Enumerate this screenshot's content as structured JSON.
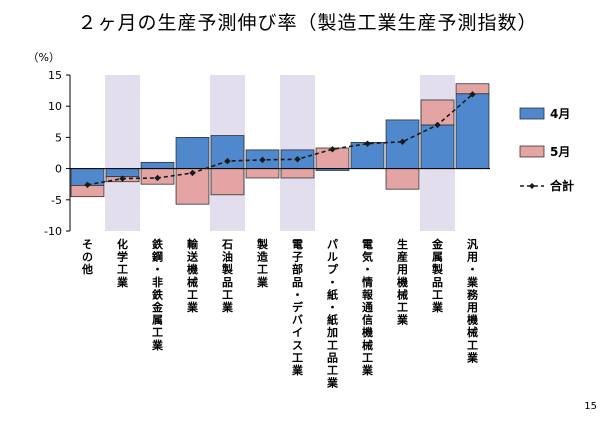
{
  "title": "２ヶ月の生産予測伸び率（製造工業生産予測指数）",
  "page_number": "15",
  "colors": {
    "april": "#4f88cc",
    "may": "#e4a4a4",
    "shade": "#e2deed",
    "line": "#1a1a1a"
  },
  "chart_data": {
    "type": "bar",
    "ylabel": "（%）",
    "ylim": [
      -10,
      15
    ],
    "yticks": [
      "15",
      "10",
      "5",
      "0",
      "-5",
      "-10"
    ],
    "categories": [
      "その他",
      "化学工業",
      "鉄鋼・非鉄金属工業",
      "輸送機械工業",
      "石油製品工業",
      "製造工業",
      "電子部品・デバイス工業",
      "パルプ・紙・紙加工品工業",
      "電気・情報通信機械工業",
      "生産用機械工業",
      "金属製品工業",
      "汎用・業務用機械工業"
    ],
    "shaded_categories": [
      1,
      4,
      6,
      10
    ],
    "series": [
      {
        "name": "4月",
        "type": "bar",
        "values": [
          -2.7,
          -1.3,
          1.0,
          5.0,
          5.3,
          3.0,
          3.0,
          -0.3,
          4.2,
          7.8,
          7.0,
          12.0
        ]
      },
      {
        "name": "5月",
        "type": "bar",
        "values": [
          -1.8,
          -0.8,
          -2.5,
          -5.7,
          -4.2,
          -1.5,
          -1.5,
          3.3,
          0.0,
          -3.3,
          4.0,
          1.6
        ]
      },
      {
        "name": "合計",
        "type": "line",
        "values": [
          -2.6,
          -1.6,
          -1.5,
          -0.7,
          1.2,
          1.4,
          1.5,
          3.1,
          4.0,
          4.3,
          7.0,
          11.9
        ]
      }
    ],
    "legend_position": "right"
  }
}
